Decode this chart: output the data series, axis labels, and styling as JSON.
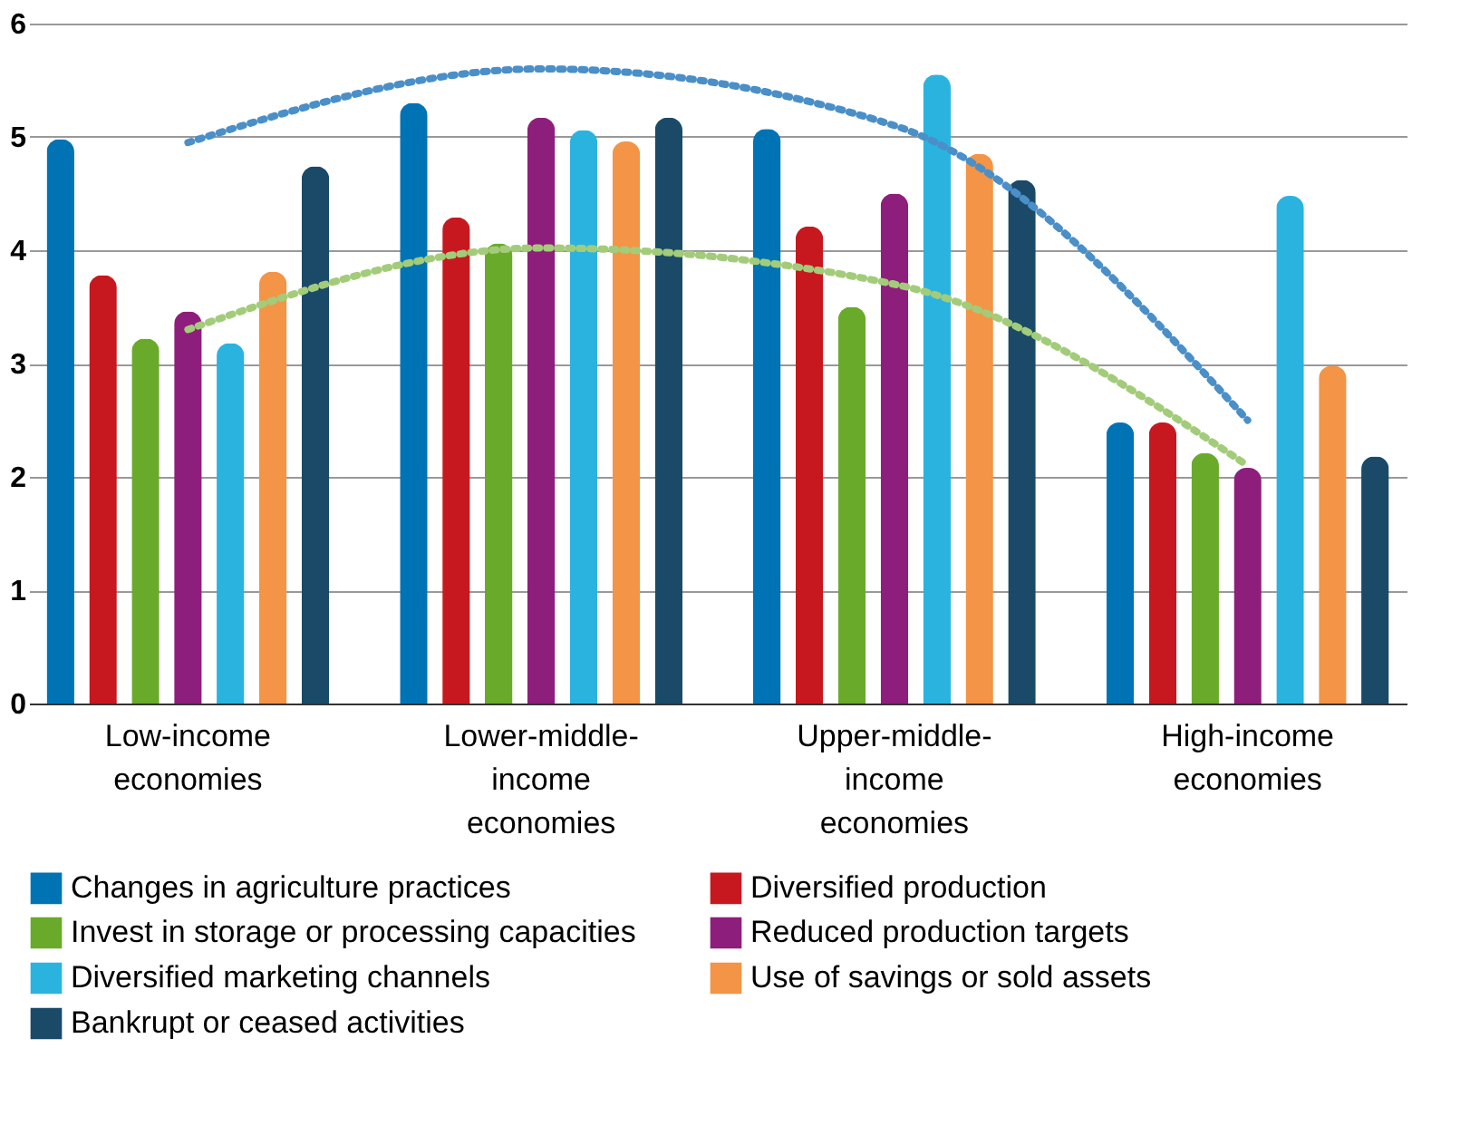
{
  "chart_data": {
    "type": "bar",
    "categories": [
      "Low-income economies",
      "Lower-middle-income economies",
      "Upper-middle-income economies",
      "High-income economies"
    ],
    "ylim": [
      0,
      6
    ],
    "yticks": [
      0,
      1,
      2,
      3,
      4,
      5,
      6
    ],
    "grid": "y",
    "legend": "bottom",
    "series": [
      {
        "name": "Changes in agriculture practices",
        "color": "#0073b5",
        "values": [
          4.98,
          5.3,
          5.07,
          2.48
        ]
      },
      {
        "name": "Diversified production",
        "color": "#c7181f",
        "values": [
          3.78,
          4.29,
          4.21,
          2.48
        ]
      },
      {
        "name": "Invest in storage or processing capacities",
        "color": "#6aaa2a",
        "values": [
          3.22,
          4.06,
          3.5,
          2.21
        ]
      },
      {
        "name": "Reduced production targets",
        "color": "#8e1e7b",
        "values": [
          3.46,
          5.17,
          4.5,
          2.08
        ]
      },
      {
        "name": "Diversified marketing channels",
        "color": "#2bb3e0",
        "values": [
          3.18,
          5.06,
          5.55,
          4.48
        ]
      },
      {
        "name": "Use of savings or sold assets",
        "color": "#f39447",
        "values": [
          3.81,
          4.96,
          4.85,
          2.98
        ]
      },
      {
        "name": "Bankrupt or ceased activities",
        "color": "#1a4a68",
        "values": [
          4.74,
          5.17,
          4.62,
          2.18
        ]
      },
      {
        "type": "line",
        "color": "#4a8fc8",
        "line_style": "dotted",
        "values": [
          4.95,
          5.6,
          5.1,
          2.5
        ]
      },
      {
        "type": "line",
        "color": "#a3cc7a",
        "line_style": "dotted",
        "values": [
          3.3,
          4.02,
          3.7,
          2.1
        ]
      }
    ]
  }
}
